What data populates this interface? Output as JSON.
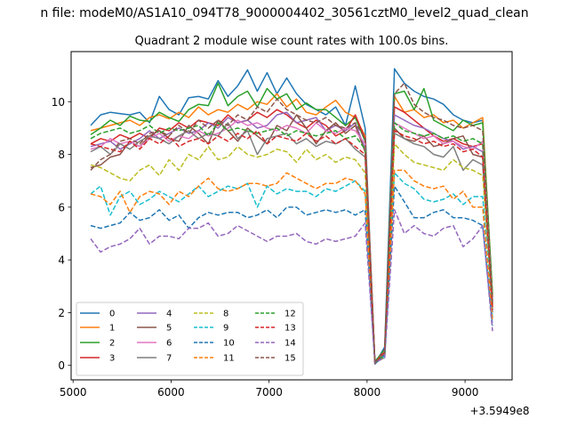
{
  "figure": {
    "suptitle": "n file: modeM0/AS1A10_094T78_9000004402_30561cztM0_level2_quad_clean"
  },
  "chart_data": {
    "type": "line",
    "title": "Quadrant 2 module wise count rates with 100.0s bins.",
    "xlabel": "",
    "ylabel": "",
    "x_offset_label": "+3.5949e8",
    "xlim": [
      4980,
      9480
    ],
    "ylim": [
      -0.55,
      11.9
    ],
    "xticks": [
      5000,
      6000,
      7000,
      8000,
      9000
    ],
    "yticks": [
      0,
      2,
      4,
      6,
      8,
      10
    ],
    "grid": false,
    "legend": {
      "placement": "lower-left",
      "columns": 4
    },
    "x": [
      5180,
      5280,
      5380,
      5480,
      5580,
      5680,
      5780,
      5880,
      5980,
      6080,
      6180,
      6280,
      6380,
      6480,
      6580,
      6680,
      6780,
      6880,
      6980,
      7080,
      7180,
      7280,
      7380,
      7480,
      7580,
      7680,
      7780,
      7880,
      7980,
      8080,
      8180,
      8280,
      8380,
      8480,
      8580,
      8680,
      8780,
      8880,
      8980,
      9080,
      9180,
      9280
    ],
    "series": [
      {
        "name": "0",
        "color": "#1f77b4",
        "dash": "solid",
        "values": [
          9.1,
          9.5,
          9.6,
          9.55,
          9.5,
          9.6,
          9.2,
          10.2,
          9.7,
          9.5,
          10.15,
          10.2,
          10.1,
          10.8,
          10.2,
          10.6,
          11.2,
          10.4,
          11.1,
          10.3,
          10.9,
          10.3,
          9.9,
          9.7,
          9.5,
          9.8,
          9.1,
          10.6,
          9.0,
          0.05,
          0.7,
          11.25,
          10.7,
          10.4,
          10.2,
          10.1,
          9.9,
          9.5,
          9.3,
          9.2,
          9.3,
          2.5
        ]
      },
      {
        "name": "1",
        "color": "#ff7f0e",
        "dash": "solid",
        "values": [
          8.9,
          9.0,
          9.1,
          9.2,
          9.3,
          9.1,
          9.4,
          9.5,
          9.35,
          9.6,
          9.4,
          9.8,
          9.5,
          9.7,
          9.6,
          9.9,
          9.7,
          10.0,
          9.9,
          10.3,
          9.8,
          10.1,
          9.6,
          9.5,
          9.8,
          10.05,
          9.6,
          9.4,
          8.7,
          0.1,
          0.5,
          10.2,
          9.6,
          9.7,
          9.4,
          9.5,
          9.2,
          9.3,
          9.0,
          9.2,
          9.4,
          2.6
        ]
      },
      {
        "name": "2",
        "color": "#2ca02c",
        "dash": "solid",
        "values": [
          8.75,
          9.0,
          9.3,
          9.1,
          9.45,
          9.3,
          9.25,
          9.6,
          9.4,
          9.25,
          9.7,
          9.9,
          9.85,
          10.7,
          9.85,
          10.2,
          10.4,
          9.8,
          10.5,
          10.1,
          10.3,
          9.7,
          9.95,
          9.7,
          9.7,
          9.4,
          9.1,
          9.4,
          8.5,
          0.15,
          0.6,
          10.3,
          10.4,
          9.7,
          10.5,
          9.3,
          9.1,
          8.9,
          9.3,
          9.1,
          9.2,
          2.7
        ]
      },
      {
        "name": "3",
        "color": "#d62728",
        "dash": "solid",
        "values": [
          8.4,
          8.6,
          8.5,
          8.75,
          8.6,
          8.8,
          8.6,
          9.0,
          8.9,
          9.2,
          9.0,
          9.3,
          9.2,
          9.1,
          9.5,
          9.2,
          9.3,
          9.6,
          9.4,
          9.7,
          9.5,
          9.2,
          9.0,
          9.3,
          9.1,
          8.7,
          8.9,
          9.5,
          8.6,
          0.1,
          0.4,
          9.8,
          9.6,
          9.3,
          9.0,
          8.7,
          8.5,
          8.6,
          8.4,
          8.3,
          8.4,
          2.2
        ]
      },
      {
        "name": "4",
        "color": "#9467bd",
        "dash": "solid",
        "values": [
          8.3,
          8.4,
          8.5,
          8.2,
          8.4,
          8.6,
          8.9,
          8.6,
          8.8,
          9.0,
          8.8,
          8.9,
          9.2,
          9.0,
          9.4,
          9.2,
          9.3,
          9.0,
          9.1,
          9.5,
          9.6,
          9.2,
          9.3,
          9.4,
          8.9,
          9.1,
          8.9,
          9.2,
          8.2,
          0.1,
          0.5,
          9.5,
          9.3,
          9.1,
          9.0,
          8.8,
          8.6,
          8.5,
          8.2,
          8.3,
          8.1,
          2.1
        ]
      },
      {
        "name": "5",
        "color": "#8c564b",
        "dash": "solid",
        "values": [
          7.5,
          7.6,
          7.9,
          8.0,
          8.5,
          8.3,
          8.7,
          8.9,
          8.6,
          8.5,
          9.1,
          8.8,
          8.4,
          9.3,
          8.9,
          8.5,
          9.0,
          8.7,
          8.4,
          9.1,
          8.9,
          9.5,
          9.0,
          8.4,
          8.9,
          9.2,
          8.8,
          9.1,
          8.1,
          0.05,
          0.5,
          9.0,
          8.6,
          8.5,
          8.7,
          8.3,
          8.4,
          8.6,
          8.7,
          8.0,
          7.9,
          2.3
        ]
      },
      {
        "name": "6",
        "color": "#e377c2",
        "dash": "solid",
        "values": [
          8.2,
          8.3,
          8.6,
          8.4,
          8.5,
          8.3,
          8.6,
          8.8,
          8.5,
          8.7,
          8.6,
          8.9,
          8.7,
          8.8,
          9.0,
          9.3,
          9.1,
          9.2,
          9.0,
          8.9,
          9.1,
          9.0,
          8.8,
          9.2,
          8.9,
          8.8,
          9.0,
          8.9,
          8.4,
          0.1,
          0.4,
          9.2,
          9.0,
          8.8,
          8.6,
          8.7,
          8.4,
          8.5,
          8.3,
          8.2,
          8.5,
          2.4
        ]
      },
      {
        "name": "7",
        "color": "#7f7f7f",
        "dash": "solid",
        "values": [
          8.1,
          8.3,
          8.0,
          8.4,
          8.2,
          8.5,
          8.7,
          8.6,
          8.4,
          8.7,
          8.9,
          8.6,
          8.8,
          8.7,
          9.2,
          8.6,
          8.9,
          8.0,
          8.6,
          8.7,
          8.8,
          8.4,
          8.6,
          8.3,
          8.5,
          8.4,
          8.6,
          8.2,
          7.9,
          0.05,
          0.5,
          8.8,
          8.6,
          8.4,
          8.3,
          8.0,
          7.9,
          8.3,
          7.4,
          7.8,
          7.6,
          2.0
        ]
      },
      {
        "name": "8",
        "color": "#bcbd22",
        "dash": "dashed",
        "values": [
          7.6,
          7.5,
          7.3,
          7.1,
          7.0,
          7.4,
          7.6,
          7.2,
          7.8,
          7.4,
          8.0,
          7.8,
          8.3,
          7.8,
          7.9,
          8.3,
          8.0,
          7.9,
          8.0,
          8.2,
          8.1,
          7.7,
          8.2,
          7.8,
          8.0,
          7.7,
          7.9,
          7.8,
          7.3,
          0.1,
          0.3,
          8.4,
          8.0,
          7.7,
          7.6,
          7.5,
          7.4,
          7.8,
          7.5,
          7.4,
          7.2,
          2.2
        ]
      },
      {
        "name": "9",
        "color": "#17becf",
        "dash": "dashed",
        "values": [
          6.5,
          6.8,
          5.7,
          6.4,
          6.6,
          6.1,
          6.3,
          6.6,
          6.4,
          6.2,
          6.5,
          6.8,
          6.4,
          6.6,
          6.8,
          6.7,
          6.9,
          6.0,
          6.8,
          6.5,
          6.7,
          6.6,
          6.6,
          6.4,
          6.7,
          6.6,
          6.8,
          7.0,
          6.6,
          0.1,
          0.3,
          7.3,
          6.9,
          6.7,
          6.3,
          6.2,
          6.3,
          6.5,
          6.1,
          6.4,
          6.4,
          1.8
        ]
      },
      {
        "name": "10",
        "color": "#1f77b4",
        "dash": "dashed",
        "values": [
          5.3,
          5.2,
          5.3,
          5.4,
          5.8,
          5.5,
          5.6,
          5.9,
          5.5,
          5.7,
          5.2,
          5.6,
          5.8,
          5.7,
          5.8,
          5.8,
          5.6,
          5.7,
          5.9,
          5.6,
          6.0,
          6.0,
          5.7,
          5.8,
          5.9,
          5.8,
          5.9,
          5.7,
          5.9,
          0.05,
          0.4,
          6.8,
          6.2,
          5.6,
          5.6,
          5.8,
          5.9,
          5.6,
          5.6,
          5.5,
          5.3,
          1.5
        ]
      },
      {
        "name": "11",
        "color": "#ff7f0e",
        "dash": "dashed",
        "values": [
          6.5,
          6.4,
          6.1,
          6.6,
          5.8,
          6.4,
          6.6,
          6.5,
          6.1,
          6.6,
          6.4,
          6.8,
          7.1,
          6.7,
          6.6,
          6.7,
          6.9,
          6.9,
          6.8,
          6.9,
          7.3,
          7.1,
          6.9,
          6.7,
          6.9,
          6.9,
          7.1,
          7.0,
          6.5,
          0.1,
          0.3,
          7.4,
          7.4,
          7.0,
          6.8,
          6.7,
          6.8,
          6.3,
          6.6,
          6.0,
          6.0,
          1.7
        ]
      },
      {
        "name": "12",
        "color": "#2ca02c",
        "dash": "dashed",
        "values": [
          8.6,
          8.8,
          8.9,
          9.0,
          8.8,
          8.9,
          9.1,
          8.8,
          9.0,
          8.9,
          9.0,
          9.1,
          8.7,
          9.2,
          8.9,
          9.0,
          8.9,
          8.8,
          8.9,
          9.0,
          8.7,
          8.9,
          8.8,
          8.7,
          8.8,
          8.9,
          8.6,
          8.7,
          8.2,
          0.1,
          0.4,
          9.2,
          8.9,
          8.8,
          8.7,
          8.8,
          8.6,
          8.7,
          8.5,
          8.6,
          8.4,
          2.3
        ]
      },
      {
        "name": "13",
        "color": "#d62728",
        "dash": "dashed",
        "values": [
          8.4,
          8.3,
          8.2,
          8.1,
          8.5,
          8.2,
          8.6,
          8.4,
          8.7,
          8.3,
          8.5,
          8.6,
          8.4,
          8.7,
          8.5,
          8.8,
          8.6,
          8.9,
          8.4,
          8.7,
          8.6,
          8.5,
          8.8,
          8.5,
          8.7,
          8.4,
          8.6,
          8.3,
          8.0,
          0.1,
          0.5,
          8.9,
          8.7,
          8.6,
          8.4,
          8.5,
          8.3,
          8.4,
          8.1,
          8.2,
          7.9,
          2.1
        ]
      },
      {
        "name": "14",
        "color": "#9467bd",
        "dash": "dashed",
        "values": [
          4.8,
          4.3,
          4.5,
          4.6,
          4.8,
          5.2,
          4.6,
          4.9,
          4.9,
          4.8,
          5.2,
          5.2,
          5.4,
          4.9,
          5.0,
          5.3,
          5.1,
          4.9,
          4.7,
          4.9,
          4.9,
          5.0,
          4.7,
          4.6,
          4.8,
          4.7,
          4.8,
          4.9,
          5.4,
          0.1,
          0.3,
          5.9,
          5.0,
          5.3,
          5.0,
          4.9,
          5.2,
          5.3,
          4.5,
          4.8,
          5.3,
          1.3
        ]
      },
      {
        "name": "15",
        "color": "#8c564b",
        "dash": "dashed",
        "values": [
          7.4,
          7.8,
          8.0,
          8.5,
          8.6,
          8.4,
          8.8,
          8.9,
          8.7,
          9.1,
          8.8,
          9.3,
          9.0,
          9.3,
          9.1,
          9.5,
          9.3,
          9.8,
          9.6,
          10.1,
          9.7,
          9.5,
          9.3,
          9.2,
          9.4,
          9.1,
          9.0,
          9.2,
          8.6,
          0.1,
          0.6,
          10.3,
          10.7,
          9.9,
          9.6,
          9.4,
          9.3,
          9.1,
          9.0,
          9.1,
          8.9,
          2.4
        ]
      }
    ]
  }
}
